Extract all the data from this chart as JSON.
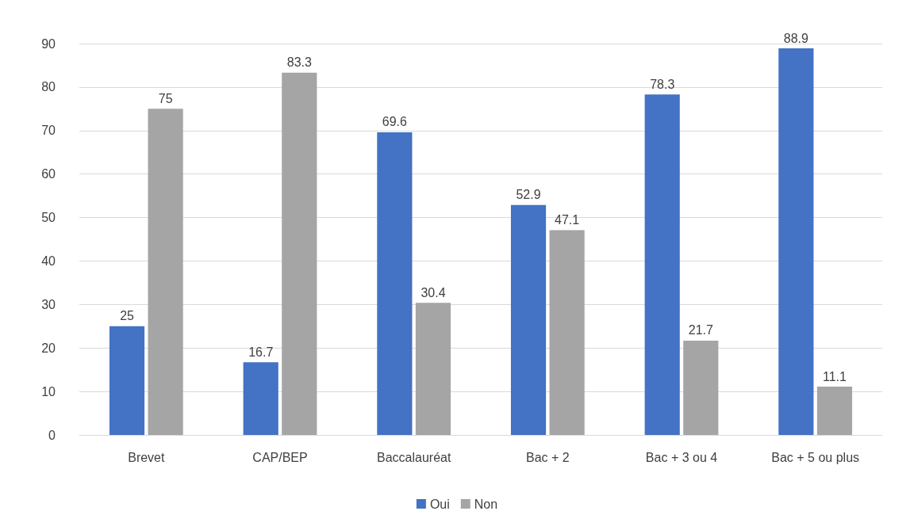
{
  "chart_data": {
    "type": "bar",
    "categories": [
      "Brevet",
      "CAP/BEP",
      "Baccalauréat",
      "Bac + 2",
      "Bac + 3 ou 4",
      "Bac + 5 ou plus"
    ],
    "series": [
      {
        "name": "Oui",
        "color": "#4472c4",
        "values": [
          25,
          16.7,
          69.6,
          52.9,
          78.3,
          88.9
        ]
      },
      {
        "name": "Non",
        "color": "#a5a5a5",
        "values": [
          75,
          83.3,
          30.4,
          47.1,
          21.7,
          11.1
        ]
      }
    ],
    "ylim": [
      0,
      90
    ],
    "yticks": [
      0,
      10,
      20,
      30,
      40,
      50,
      60,
      70,
      80,
      90
    ],
    "grid": "y",
    "legend": "bottom",
    "data_labels": true
  }
}
